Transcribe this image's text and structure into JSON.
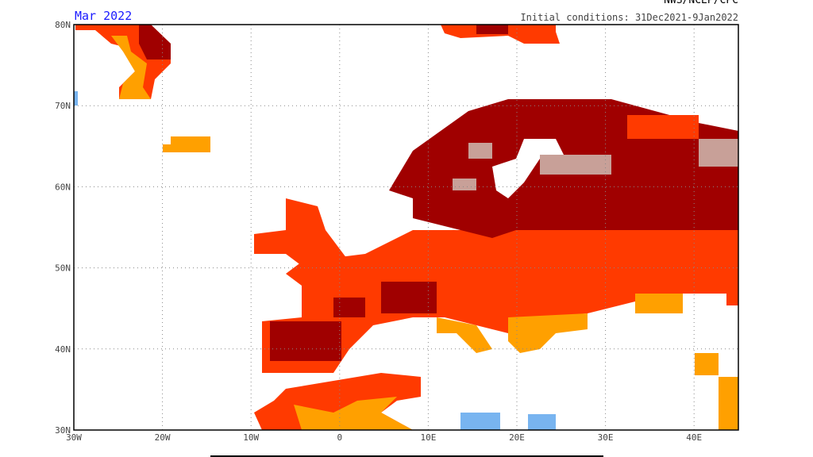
{
  "map": {
    "title": "Mar 2022",
    "subtitle": "Initial conditions: 31Dec2021-9Jan2022",
    "source": "NWS/NCEP/CPC",
    "lat_labels": [
      "80N",
      "70N",
      "60N",
      "50N",
      "40N",
      "30N"
    ],
    "lon_labels": [
      "30W",
      "20W",
      "10W",
      "0",
      "10E",
      "20E",
      "30E",
      "40E"
    ]
  }
}
